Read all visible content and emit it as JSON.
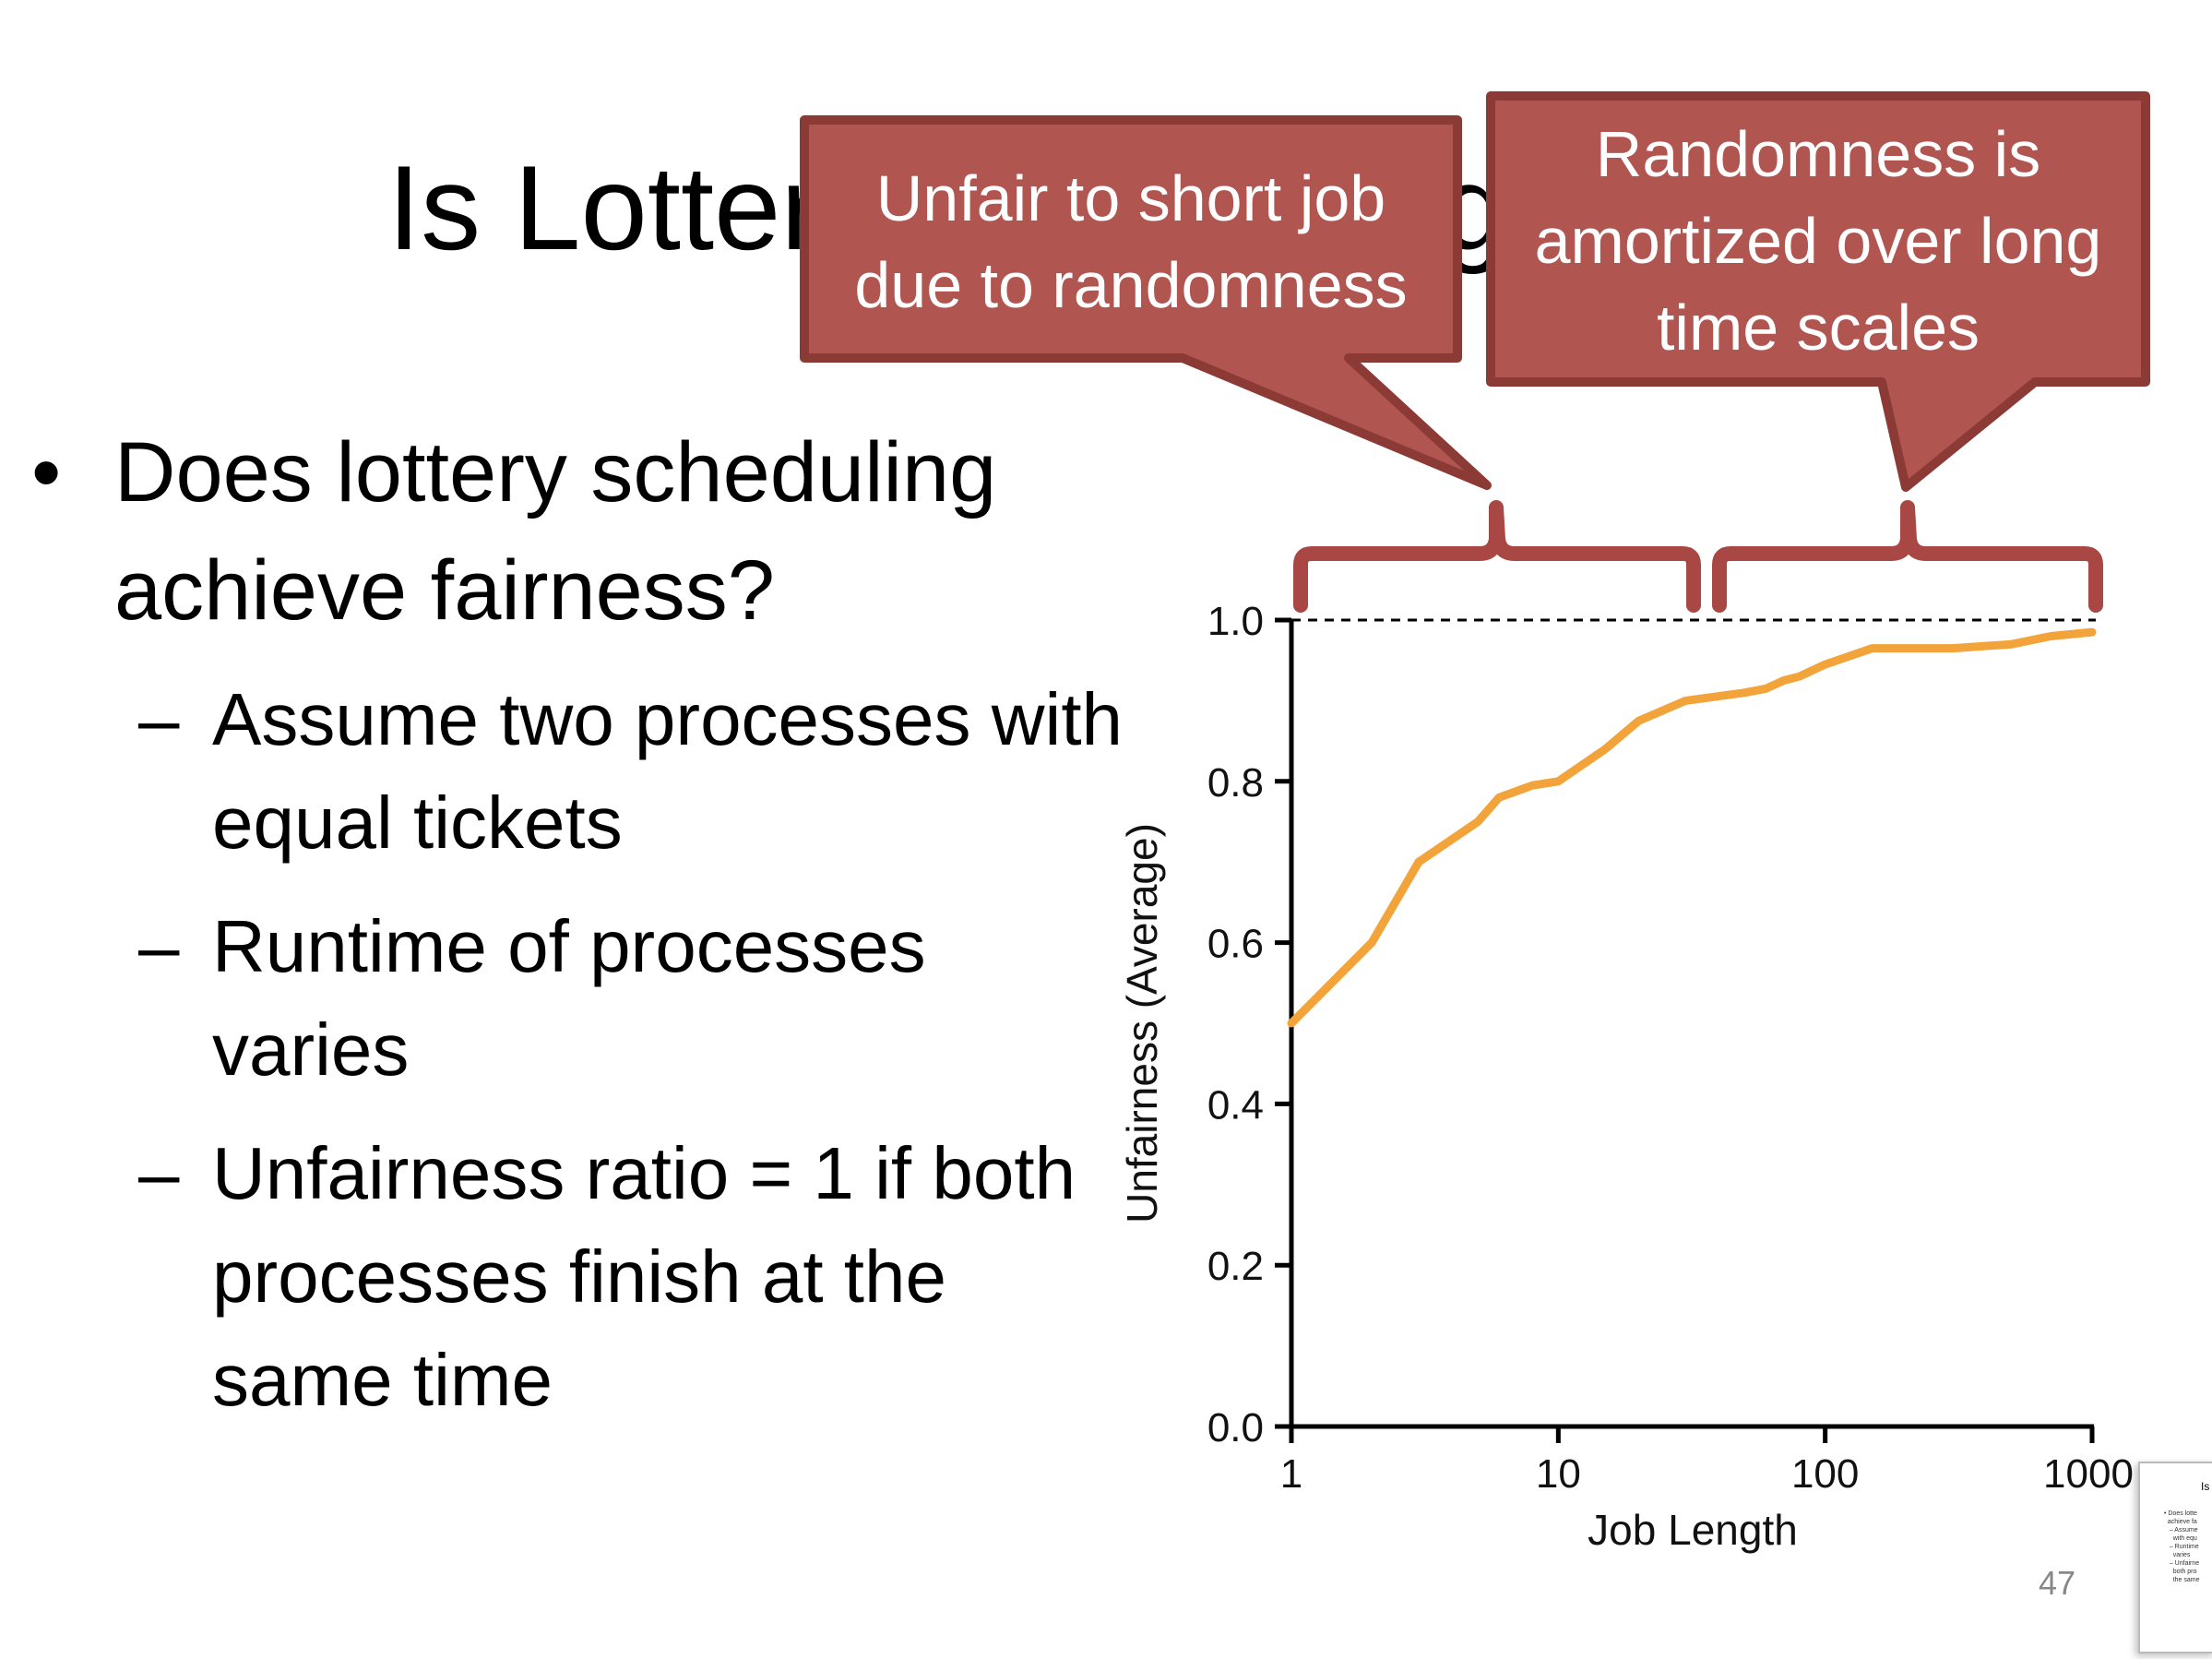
{
  "slide": {
    "title": "Is Lottery Scheduling Fair?",
    "bullet": "Does lottery scheduling achieve fairness?",
    "sub_bullets": [
      "Assume two processes with equal tickets",
      "Runtime of processes varies",
      "Unfairness ratio = 1 if both processes finish at the same time"
    ],
    "callouts": {
      "left": {
        "line1": "Unfair to short job",
        "line2": "due to randomness"
      },
      "right": {
        "line1": "Randomness is",
        "line2": "amortized over long",
        "line3": "time scales"
      }
    },
    "page_number": "47",
    "colors": {
      "callout_fill": "#b0554f",
      "callout_border": "#8c3a36",
      "line": "#f2a33a"
    }
  },
  "chart_data": {
    "type": "line",
    "xlabel": "Job Length",
    "ylabel": "Unfairness (Average)",
    "x_scale": "log",
    "xlim": [
      1,
      1000
    ],
    "ylim": [
      0,
      1.0
    ],
    "x_ticks": [
      "1",
      "10",
      "100",
      "1000"
    ],
    "y_ticks": [
      "0.0",
      "0.2",
      "0.4",
      "0.6",
      "0.8",
      "1.0"
    ],
    "reference_line": 1.0,
    "series": [
      {
        "x": [
          1,
          2,
          3,
          5,
          6,
          8,
          10,
          15,
          20,
          30,
          50,
          60,
          70,
          80,
          100,
          150,
          200,
          300,
          500,
          700,
          1000
        ],
        "values": [
          0.5,
          0.6,
          0.7,
          0.75,
          0.78,
          0.795,
          0.8,
          0.84,
          0.875,
          0.9,
          0.91,
          0.915,
          0.925,
          0.93,
          0.945,
          0.965,
          0.965,
          0.965,
          0.97,
          0.98,
          0.985
        ]
      }
    ]
  }
}
